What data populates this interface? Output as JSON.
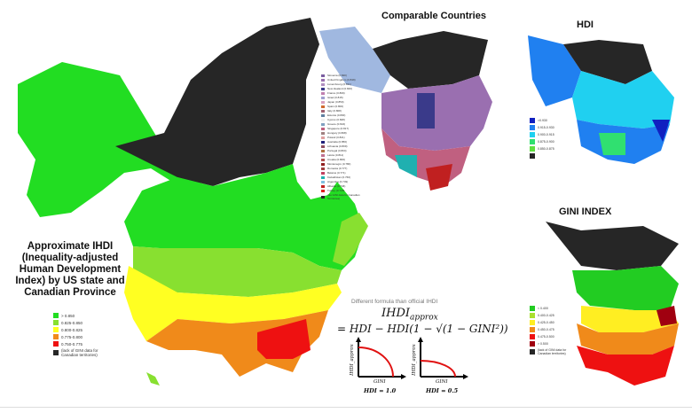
{
  "main_map": {
    "title": "Approximate IHDI (Inequality-adjusted Human Development Index) by US state and Canadian Province",
    "legend": [
      {
        "label": "> 0.850",
        "color": "#22dd22"
      },
      {
        "label": "0.825-0.850",
        "color": "#88e030"
      },
      {
        "label": "0.800-0.825",
        "color": "#ffff22"
      },
      {
        "label": "0.775-0.800",
        "color": "#f08a1a"
      },
      {
        "label": "0.750-0.775",
        "color": "#ee1111"
      },
      {
        "label": "(lack of GINI data for Canadian territories)",
        "color": "#262626"
      }
    ]
  },
  "comparable": {
    "title": "Comparable Countries",
    "legend": [
      {
        "label": "Slovenia (0.840)",
        "color": "#7a5da0"
      },
      {
        "label": "United Kingdom (0.849)",
        "color": "#9a6fb0"
      },
      {
        "label": "Luxembourg (0.811)",
        "color": "#b08fc0"
      },
      {
        "label": "New Zealand (0.846)",
        "color": "#3a3a8a"
      },
      {
        "label": "France (0.809)",
        "color": "#c080b0"
      },
      {
        "label": "Israel (0.815)",
        "color": "#a0a0d0"
      },
      {
        "label": "Japan (0.850)",
        "color": "#d8a0c0"
      },
      {
        "label": "Spain (0.800)",
        "color": "#d06a30"
      },
      {
        "label": "Italy (0.808)",
        "color": "#a06070"
      },
      {
        "label": "Estonia (0.830)",
        "color": "#6080a0"
      },
      {
        "label": "Cyprus (0.828)",
        "color": "#f0f0f0"
      },
      {
        "label": "Greece (0.824)",
        "color": "#80a0c0"
      },
      {
        "label": "Singapore (0.817)",
        "color": "#c06080"
      },
      {
        "label": "Hungary (0.808)",
        "color": "#a08080"
      },
      {
        "label": "Poland (0.821)",
        "color": "#e0a0a0"
      },
      {
        "label": "Australia (0.856)",
        "color": "#20207a"
      },
      {
        "label": "Lithuania (0.809)",
        "color": "#905060"
      },
      {
        "label": "Portugal (0.804)",
        "color": "#b07040"
      },
      {
        "label": "Latvia (0.811)",
        "color": "#c07090"
      },
      {
        "label": "Croatia (0.806)",
        "color": "#b05050"
      },
      {
        "label": "Montenegro (0.780)",
        "color": "#902020"
      },
      {
        "label": "Romania (0.777)",
        "color": "#a04040"
      },
      {
        "label": "Belarus (0.771)",
        "color": "#c04060"
      },
      {
        "label": "Kazakhstan (0.766)",
        "color": "#20b0b0"
      },
      {
        "label": "Argentina (0.749)",
        "color": "#80c0e0"
      },
      {
        "label": "Albania (0.746)",
        "color": "#c02020"
      },
      {
        "label": "Turkey (0.728)",
        "color": "#e02020"
      },
      {
        "label": "(No GINI data for Canadian Territories)",
        "color": "#262626"
      }
    ]
  },
  "hdi": {
    "title": "HDI",
    "legend": [
      {
        "label": ">0.930",
        "color": "#1020c0"
      },
      {
        "label": "0.915-0.930",
        "color": "#2080f0"
      },
      {
        "label": "0.900-0.915",
        "color": "#20d0f0"
      },
      {
        "label": "0.875-0.900",
        "color": "#30e070"
      },
      {
        "label": "0.850-0.875",
        "color": "#60e040"
      },
      {
        "label": "",
        "color": "#262626"
      }
    ]
  },
  "gini": {
    "title": "GINI INDEX",
    "legend": [
      {
        "label": "< 0.400",
        "color": "#22cc22"
      },
      {
        "label": "0.400-0.425",
        "color": "#aae030"
      },
      {
        "label": "0.425-0.450",
        "color": "#ffee22"
      },
      {
        "label": "0.450-0.475",
        "color": "#f08a1a"
      },
      {
        "label": "0.475-0.500",
        "color": "#ee1111"
      },
      {
        "label": "> 0.500",
        "color": "#a00010"
      },
      {
        "label": "(lack of GINI data for Canadian territories)",
        "color": "#262626"
      }
    ]
  },
  "formula": {
    "note": "Different formula than official IHDI",
    "lhs": "IHDI_approx",
    "rhs": "= HDI − HDI(1 − √(1 − GINI²))",
    "graph1": {
      "ylabel": "IHDI_approx",
      "xlabel": "GINI",
      "caption": "HDI = 1.0"
    },
    "graph2": {
      "ylabel": "IHDI_approx",
      "xlabel": "GINI",
      "caption": "HDI = 0.5"
    }
  }
}
